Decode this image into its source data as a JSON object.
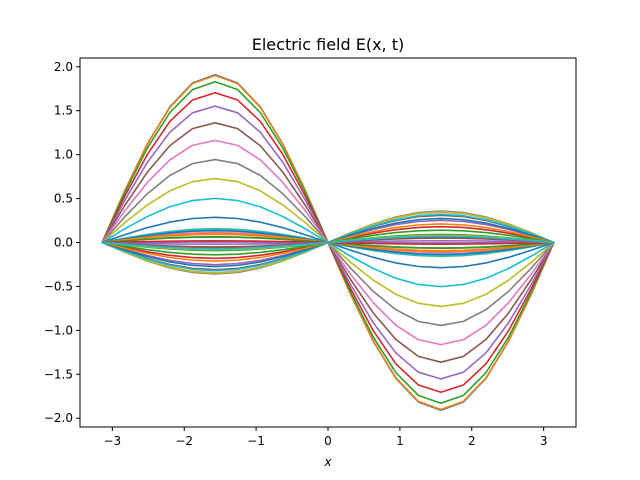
{
  "chart_data": {
    "type": "line",
    "title": "Electric field E(x, t)",
    "xlabel": "x",
    "ylabel": "",
    "xlim": [
      -3.45,
      3.45
    ],
    "ylim": [
      -2.1,
      2.1
    ],
    "grid": false,
    "legend": "none",
    "x_ticks": [
      {
        "value": -3,
        "label": "−3"
      },
      {
        "value": -2,
        "label": "−2"
      },
      {
        "value": -1,
        "label": "−1"
      },
      {
        "value": 0,
        "label": "0"
      },
      {
        "value": 1,
        "label": "1"
      },
      {
        "value": 2,
        "label": "2"
      },
      {
        "value": 3,
        "label": "3"
      }
    ],
    "y_ticks": [
      {
        "value": -2.0,
        "label": "−2.0"
      },
      {
        "value": -1.5,
        "label": "−1.5"
      },
      {
        "value": -1.0,
        "label": "−1.0"
      },
      {
        "value": -0.5,
        "label": "−0.5"
      },
      {
        "value": 0.0,
        "label": "0.0"
      },
      {
        "value": 0.5,
        "label": "0.5"
      },
      {
        "value": 1.0,
        "label": "1.0"
      },
      {
        "value": 1.5,
        "label": "1.5"
      },
      {
        "value": 2.0,
        "label": "2.0"
      }
    ],
    "x": [
      -3.14159,
      -2.82743,
      -2.51327,
      -2.19911,
      -1.88496,
      -1.5708,
      -1.25664,
      -0.94248,
      -0.62832,
      -0.31416,
      0.0,
      0.31416,
      0.62832,
      0.94248,
      1.25664,
      1.5708,
      1.88496,
      2.19911,
      2.51327,
      2.82743,
      3.14159
    ],
    "series": [
      {
        "color": "#1f77b4",
        "values": [
          0.0,
          0.5897,
          1.1219,
          1.5442,
          1.8153,
          1.9087,
          1.8153,
          1.5442,
          1.1219,
          0.5897,
          0.0,
          -0.5897,
          -1.1219,
          -1.5442,
          -1.8153,
          -1.9087,
          -1.8153,
          -1.5442,
          -1.1219,
          -0.5897,
          0.0
        ]
      },
      {
        "color": "#ff7f0e",
        "values": [
          0.0,
          0.5875,
          1.1174,
          1.5379,
          1.8079,
          1.901,
          1.8079,
          1.5379,
          1.1174,
          0.5875,
          0.0,
          -0.5875,
          -1.1174,
          -1.5379,
          -1.8079,
          -1.901,
          -1.8079,
          -1.5379,
          -1.1174,
          -0.5875,
          0.0
        ]
      },
      {
        "color": "#2ca02c",
        "values": [
          0.0,
          0.5652,
          1.0751,
          1.4797,
          1.7397,
          1.8296,
          1.7397,
          1.4797,
          1.0751,
          0.5652,
          0.0,
          -0.5652,
          -1.0751,
          -1.4797,
          -1.7397,
          -1.8296,
          -1.7397,
          -1.4797,
          -1.0751,
          -0.5652,
          0.0
        ]
      },
      {
        "color": "#d62728",
        "values": [
          0.0,
          0.527,
          1.002,
          1.3795,
          1.6214,
          1.7049,
          1.6214,
          1.3795,
          1.002,
          0.527,
          0.0,
          -0.527,
          -1.002,
          -1.3795,
          -1.6214,
          -1.7049,
          -1.6214,
          -1.3795,
          -1.002,
          -0.527,
          0.0
        ]
      },
      {
        "color": "#9467bd",
        "values": [
          0.0,
          0.4796,
          0.9121,
          1.2555,
          1.476,
          1.5519,
          1.476,
          1.2555,
          0.9121,
          0.4796,
          0.0,
          -0.4796,
          -0.9121,
          -1.2555,
          -1.476,
          -1.5519,
          -1.476,
          -1.2555,
          -0.9121,
          -0.4796,
          0.0
        ]
      },
      {
        "color": "#8c564b",
        "values": [
          0.0,
          0.421,
          0.8008,
          1.1022,
          1.2958,
          1.3625,
          1.2958,
          1.1022,
          0.8008,
          0.421,
          0.0,
          -0.421,
          -0.8008,
          -1.1022,
          -1.2958,
          -1.3625,
          -1.2958,
          -1.1022,
          -0.8008,
          -0.421,
          0.0
        ]
      },
      {
        "color": "#e377c2",
        "values": [
          0.0,
          0.3593,
          0.6834,
          0.9406,
          1.1058,
          1.1627,
          1.1058,
          0.9406,
          0.6834,
          0.3593,
          0.0,
          -0.3593,
          -0.6834,
          -0.9406,
          -1.1058,
          -1.1627,
          -1.1058,
          -0.9406,
          -0.6834,
          -0.3593,
          0.0
        ]
      },
      {
        "color": "#7f7f7f",
        "values": [
          0.0,
          0.2917,
          0.5549,
          0.7637,
          0.8978,
          0.944,
          0.8978,
          0.7637,
          0.5549,
          0.2917,
          0.0,
          -0.2917,
          -0.5549,
          -0.7637,
          -0.8978,
          -0.944,
          -0.8978,
          -0.7637,
          -0.5549,
          -0.2917,
          0.0
        ]
      },
      {
        "color": "#bcbd22",
        "values": [
          0.0,
          0.2249,
          0.4278,
          0.5888,
          0.6922,
          0.7278,
          0.6922,
          0.5888,
          0.4278,
          0.2249,
          0.0,
          -0.2249,
          -0.4278,
          -0.5888,
          -0.6922,
          -0.7278,
          -0.6922,
          -0.5888,
          -0.4278,
          -0.2249,
          0.0
        ]
      },
      {
        "color": "#17becf",
        "values": [
          0.0,
          0.1552,
          0.2953,
          0.4064,
          0.4778,
          0.5024,
          0.4778,
          0.4064,
          0.2953,
          0.1552,
          0.0,
          -0.1552,
          -0.2953,
          -0.4064,
          -0.4778,
          -0.5024,
          -0.4778,
          -0.4064,
          -0.2953,
          -0.1552,
          0.0
        ]
      },
      {
        "color": "#1f77b4",
        "values": [
          0.0,
          0.0887,
          0.1688,
          0.2323,
          0.2731,
          0.2872,
          0.2731,
          0.2323,
          0.1688,
          0.0887,
          0.0,
          -0.0887,
          -0.1688,
          -0.2323,
          -0.2731,
          -0.2872,
          -0.2731,
          -0.2323,
          -0.1688,
          -0.0887,
          0.0
        ]
      },
      {
        "color": "#ff7f0e",
        "values": [
          0.0,
          0.0287,
          0.0546,
          0.0752,
          0.0884,
          0.093,
          0.0884,
          0.0752,
          0.0546,
          0.0287,
          0.0,
          -0.0287,
          -0.0546,
          -0.0752,
          -0.0884,
          -0.093,
          -0.0884,
          -0.0752,
          -0.0546,
          -0.0287,
          0.0
        ]
      },
      {
        "color": "#2ca02c",
        "values": [
          0.0,
          -0.0283,
          -0.0538,
          -0.0741,
          -0.0871,
          -0.0916,
          -0.0871,
          -0.0741,
          -0.0538,
          -0.0283,
          0.0,
          0.0283,
          0.0538,
          0.0741,
          0.0871,
          0.0916,
          0.0871,
          0.0741,
          0.0538,
          0.0283,
          0.0
        ]
      },
      {
        "color": "#d62728",
        "values": [
          0.0,
          -0.0556,
          -0.1057,
          -0.1455,
          -0.1711,
          -0.1799,
          -0.1711,
          -0.1455,
          -0.1057,
          -0.0556,
          0.0,
          0.0556,
          0.1057,
          0.1455,
          0.1711,
          0.1799,
          0.1711,
          0.1455,
          0.1057,
          0.0556,
          0.0
        ]
      },
      {
        "color": "#9467bd",
        "values": [
          0.0,
          -0.078,
          -0.1484,
          -0.2042,
          -0.2401,
          -0.2524,
          -0.2401,
          -0.2042,
          -0.1484,
          -0.078,
          0.0,
          0.078,
          0.1484,
          0.2042,
          0.2401,
          0.2524,
          0.2401,
          0.2042,
          0.1484,
          0.078,
          0.0
        ]
      },
      {
        "color": "#8c564b",
        "values": [
          0.0,
          -0.0957,
          -0.182,
          -0.2506,
          -0.2946,
          -0.3097,
          -0.2946,
          -0.2506,
          -0.182,
          -0.0957,
          0.0,
          0.0957,
          0.182,
          0.2506,
          0.2946,
          0.3097,
          0.2946,
          0.2506,
          0.182,
          0.0957,
          0.0
        ]
      },
      {
        "color": "#e377c2",
        "values": [
          0.0,
          -0.1067,
          -0.203,
          -0.2794,
          -0.3285,
          -0.3454,
          -0.3285,
          -0.2794,
          -0.203,
          -0.1067,
          0.0,
          0.1067,
          0.203,
          0.2794,
          0.3285,
          0.3454,
          0.3285,
          0.2794,
          0.203,
          0.1067,
          0.0
        ]
      },
      {
        "color": "#7f7f7f",
        "values": [
          0.0,
          -0.1107,
          -0.2106,
          -0.2898,
          -0.3407,
          -0.3583,
          -0.3407,
          -0.2898,
          -0.2106,
          -0.1107,
          0.0,
          0.1107,
          0.2106,
          0.2898,
          0.3407,
          0.3583,
          0.3407,
          0.2898,
          0.2106,
          0.1107,
          0.0
        ]
      },
      {
        "color": "#bcbd22",
        "values": [
          0.0,
          -0.108,
          -0.2054,
          -0.2827,
          -0.3324,
          -0.3495,
          -0.3324,
          -0.2827,
          -0.2054,
          -0.108,
          0.0,
          0.108,
          0.2054,
          0.2827,
          0.3324,
          0.3495,
          0.3324,
          0.2827,
          0.2054,
          0.108,
          0.0
        ]
      },
      {
        "color": "#17becf",
        "values": [
          0.0,
          -0.099,
          -0.1883,
          -0.2592,
          -0.3047,
          -0.3204,
          -0.3047,
          -0.2592,
          -0.1883,
          -0.099,
          0.0,
          0.099,
          0.1883,
          0.2592,
          0.3047,
          0.3204,
          0.3047,
          0.2592,
          0.1883,
          0.099,
          0.0
        ]
      },
      {
        "color": "#1f77b4",
        "values": [
          0.0,
          -0.0846,
          -0.1609,
          -0.2215,
          -0.2604,
          -0.2738,
          -0.2604,
          -0.2215,
          -0.1609,
          -0.0846,
          0.0,
          0.0846,
          0.1609,
          0.2215,
          0.2604,
          0.2738,
          0.2604,
          0.2215,
          0.1609,
          0.0846,
          0.0
        ]
      },
      {
        "color": "#ff7f0e",
        "values": [
          0.0,
          -0.0652,
          -0.124,
          -0.1707,
          -0.2007,
          -0.211,
          -0.2007,
          -0.1707,
          -0.124,
          -0.0652,
          0.0,
          0.0652,
          0.124,
          0.1707,
          0.2007,
          0.211,
          0.2007,
          0.1707,
          0.124,
          0.0652,
          0.0
        ]
      },
      {
        "color": "#2ca02c",
        "values": [
          0.0,
          -0.0432,
          -0.0821,
          -0.113,
          -0.1328,
          -0.1397,
          -0.1328,
          -0.113,
          -0.0821,
          -0.0432,
          0.0,
          0.0432,
          0.0821,
          0.113,
          0.1328,
          0.1397,
          0.1328,
          0.113,
          0.0821,
          0.0432,
          0.0
        ]
      },
      {
        "color": "#d62728",
        "values": [
          0.0,
          -0.0203,
          -0.0386,
          -0.0531,
          -0.0624,
          -0.0656,
          -0.0624,
          -0.0531,
          -0.0386,
          -0.0203,
          0.0,
          0.0203,
          0.0386,
          0.0531,
          0.0624,
          0.0656,
          0.0624,
          0.0531,
          0.0386,
          0.0203,
          0.0
        ]
      },
      {
        "color": "#9467bd",
        "values": [
          0.0,
          0.0015,
          0.0029,
          0.004,
          0.0047,
          0.0049,
          0.0047,
          0.004,
          0.0029,
          0.0015,
          0.0,
          -0.0015,
          -0.0029,
          -0.004,
          -0.0047,
          -0.0049,
          -0.0047,
          -0.004,
          -0.0029,
          -0.0015,
          0.0
        ]
      },
      {
        "color": "#8c564b",
        "values": [
          0.0,
          0.0202,
          0.0385,
          0.053,
          0.0623,
          0.0655,
          0.0623,
          0.053,
          0.0385,
          0.0202,
          0.0,
          -0.0202,
          -0.0385,
          -0.053,
          -0.0623,
          -0.0655,
          -0.0623,
          -0.053,
          -0.0385,
          -0.0202,
          0.0
        ]
      },
      {
        "color": "#e377c2",
        "values": [
          0.0,
          0.0349,
          0.0664,
          0.0914,
          0.1075,
          0.113,
          0.1075,
          0.0914,
          0.0664,
          0.0349,
          0.0,
          -0.0349,
          -0.0664,
          -0.0914,
          -0.1075,
          -0.113,
          -0.1075,
          -0.0914,
          -0.0664,
          -0.0349,
          0.0
        ]
      },
      {
        "color": "#7f7f7f",
        "values": [
          0.0,
          0.0446,
          0.0849,
          0.1169,
          0.1374,
          0.1445,
          0.1374,
          0.1169,
          0.0849,
          0.0446,
          0.0,
          -0.0446,
          -0.0849,
          -0.1169,
          -0.1374,
          -0.1445,
          -0.1374,
          -0.1169,
          -0.0849,
          -0.0446,
          0.0
        ]
      },
      {
        "color": "#bcbd22",
        "values": [
          0.0,
          0.0489,
          0.093,
          0.128,
          0.1505,
          0.1582,
          0.1505,
          0.128,
          0.093,
          0.0489,
          0.0,
          -0.0489,
          -0.093,
          -0.128,
          -0.1505,
          -0.1582,
          -0.1505,
          -0.128,
          -0.093,
          -0.0489,
          0.0
        ]
      },
      {
        "color": "#17becf",
        "values": [
          0.0,
          0.0476,
          0.0905,
          0.1246,
          0.1465,
          0.154,
          0.1465,
          0.1246,
          0.0905,
          0.0476,
          0.0,
          -0.0476,
          -0.0905,
          -0.1246,
          -0.1465,
          -0.154,
          -0.1465,
          -0.1246,
          -0.0905,
          -0.0476,
          0.0
        ]
      },
      {
        "color": "#1f77b4",
        "values": [
          0.0,
          0.0416,
          0.0791,
          0.1089,
          0.128,
          0.1346,
          0.128,
          0.1089,
          0.0791,
          0.0416,
          0.0,
          -0.0416,
          -0.0791,
          -0.1089,
          -0.128,
          -0.1346,
          -0.128,
          -0.1089,
          -0.0791,
          -0.0416,
          0.0
        ]
      },
      {
        "color": "#ff7f0e",
        "values": [
          0.0,
          0.0316,
          0.0601,
          0.0828,
          0.0973,
          0.1023,
          0.0973,
          0.0828,
          0.0601,
          0.0316,
          0.0,
          -0.0316,
          -0.0601,
          -0.0828,
          -0.0973,
          -0.1023,
          -0.0973,
          -0.0828,
          -0.0601,
          -0.0316,
          0.0
        ]
      },
      {
        "color": "#2ca02c",
        "values": [
          0.0,
          0.0191,
          0.0363,
          0.05,
          0.0587,
          0.0618,
          0.0587,
          0.05,
          0.0363,
          0.0191,
          0.0,
          -0.0191,
          -0.0363,
          -0.05,
          -0.0587,
          -0.0618,
          -0.0587,
          -0.05,
          -0.0363,
          -0.0191,
          0.0
        ]
      },
      {
        "color": "#d62728",
        "values": [
          0.0,
          0.006,
          0.0113,
          0.0156,
          0.0184,
          0.0193,
          0.0184,
          0.0156,
          0.0113,
          0.006,
          0.0,
          -0.006,
          -0.0113,
          -0.0156,
          -0.0184,
          -0.0193,
          -0.0184,
          -0.0156,
          -0.0113,
          -0.006,
          0.0
        ]
      },
      {
        "color": "#9467bd",
        "values": [
          0.0,
          -0.006,
          -0.0114,
          -0.0158,
          -0.0185,
          -0.0195,
          -0.0185,
          -0.0158,
          -0.0114,
          -0.006,
          0.0,
          0.006,
          0.0114,
          0.0158,
          0.0185,
          0.0195,
          0.0185,
          0.0158,
          0.0114,
          0.006,
          0.0
        ]
      },
      {
        "color": "#8c564b",
        "values": [
          0.0,
          -0.0156,
          -0.0297,
          -0.0409,
          -0.0481,
          -0.0505,
          -0.0481,
          -0.0409,
          -0.0297,
          -0.0156,
          0.0,
          0.0156,
          0.0297,
          0.0409,
          0.0481,
          0.0505,
          0.0481,
          0.0409,
          0.0297,
          0.0156,
          0.0
        ]
      },
      {
        "color": "#e377c2",
        "values": [
          0.0,
          -0.0221,
          -0.0421,
          -0.058,
          -0.0682,
          -0.0717,
          -0.0682,
          -0.058,
          -0.0421,
          -0.0221,
          0.0,
          0.0221,
          0.0421,
          0.058,
          0.0682,
          0.0717,
          0.0682,
          0.058,
          0.0421,
          0.0221,
          0.0
        ]
      },
      {
        "color": "#7f7f7f",
        "values": [
          0.0,
          -0.0252,
          -0.0479,
          -0.066,
          -0.0776,
          -0.0816,
          -0.0776,
          -0.066,
          -0.0479,
          -0.0252,
          0.0,
          0.0252,
          0.0479,
          0.066,
          0.0776,
          0.0816,
          0.0776,
          0.066,
          0.0479,
          0.0252,
          0.0
        ]
      },
      {
        "color": "#bcbd22",
        "values": [
          0.0,
          -0.0251,
          -0.0477,
          -0.0656,
          -0.0772,
          -0.0811,
          -0.0772,
          -0.0656,
          -0.0477,
          -0.0251,
          0.0,
          0.0251,
          0.0477,
          0.0656,
          0.0772,
          0.0811,
          0.0772,
          0.0656,
          0.0477,
          0.0251,
          0.0
        ]
      },
      {
        "color": "#17becf",
        "values": [
          0.0,
          -0.0222,
          -0.0422,
          -0.0581,
          -0.0683,
          -0.0718,
          -0.0683,
          -0.0581,
          -0.0422,
          -0.0222,
          0.0,
          0.0222,
          0.0422,
          0.0581,
          0.0683,
          0.0718,
          0.0683,
          0.0581,
          0.0422,
          0.0222,
          0.0
        ]
      }
    ]
  }
}
